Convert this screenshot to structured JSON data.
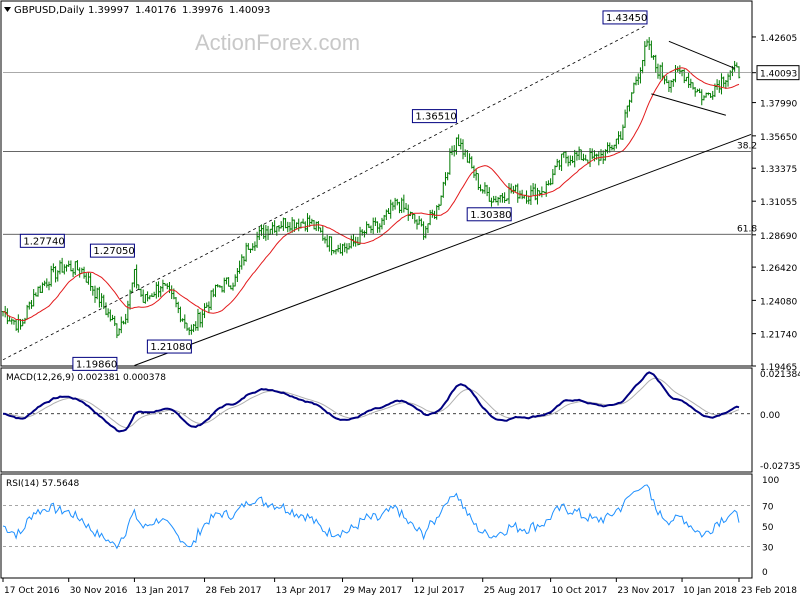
{
  "chart_data": {
    "type": "candlestick",
    "title": "GBPUSD,Daily",
    "ohlc": {
      "open": "1.39997",
      "high": "1.40176",
      "low": "1.39976",
      "close": "1.40093"
    },
    "watermark": "ActionForex.com",
    "current_price_label": "1.40093",
    "x_tick_labels": [
      "17 Oct 2016",
      "30 Nov 2016",
      "13 Jan 2017",
      "28 Feb 2017",
      "13 Apr 2017",
      "29 May 2017",
      "12 Jul 2017",
      "25 Aug 2017",
      "10 Oct 2017",
      "23 Nov 2017",
      "10 Jan 2018",
      "23 Feb 2018"
    ],
    "price_panel": {
      "y_ticks": [
        1.42605,
        1.40093,
        1.3799,
        1.3565,
        1.33375,
        1.31055,
        1.2869,
        1.2642,
        1.2408,
        1.2174,
        1.19465
      ],
      "y_tick_labels": [
        "1.42605",
        "1.40093",
        "1.37990",
        "1.35650",
        "1.33375",
        "1.31055",
        "1.28690",
        "1.26420",
        "1.24080",
        "1.21740",
        "1.19465"
      ],
      "ylim": [
        1.19465,
        1.445
      ],
      "annotations": [
        {
          "label": "1.27740",
          "x_index": 28,
          "value": 1.2774
        },
        {
          "label": "1.19860",
          "x_index": 52,
          "value": 1.1986
        },
        {
          "label": "1.27050",
          "x_index": 60,
          "value": 1.2705
        },
        {
          "label": "1.21080",
          "x_index": 86,
          "value": 1.2108
        },
        {
          "label": "1.36510",
          "x_index": 207,
          "value": 1.3651
        },
        {
          "label": "1.30380",
          "x_index": 232,
          "value": 1.3038
        },
        {
          "label": "1.43450",
          "x_index": 294,
          "value": 1.4345
        }
      ],
      "fib_levels": [
        {
          "label": "38.2",
          "value": 1.3455
        },
        {
          "label": "61.8",
          "value": 1.2873
        }
      ],
      "moving_average_color": "#e31a1c",
      "candle_color": "#007a00",
      "trendline_color": "#000000"
    },
    "macd_panel": {
      "label": "MACD(12,26,9) 0.002381 0.000378",
      "y_tick_labels": [
        "0.021384",
        "0.00",
        "-0.027353"
      ],
      "ylim": [
        -0.027353,
        0.021384
      ],
      "macd_color": "#000080",
      "signal_color": "#b0b0b0"
    },
    "rsi_panel": {
      "label": "RSI(14) 57.5648",
      "y_tick_labels": [
        "100",
        "70",
        "50",
        "30",
        "0"
      ],
      "ylim": [
        0,
        100
      ],
      "rsi_color": "#1e90ff"
    }
  }
}
